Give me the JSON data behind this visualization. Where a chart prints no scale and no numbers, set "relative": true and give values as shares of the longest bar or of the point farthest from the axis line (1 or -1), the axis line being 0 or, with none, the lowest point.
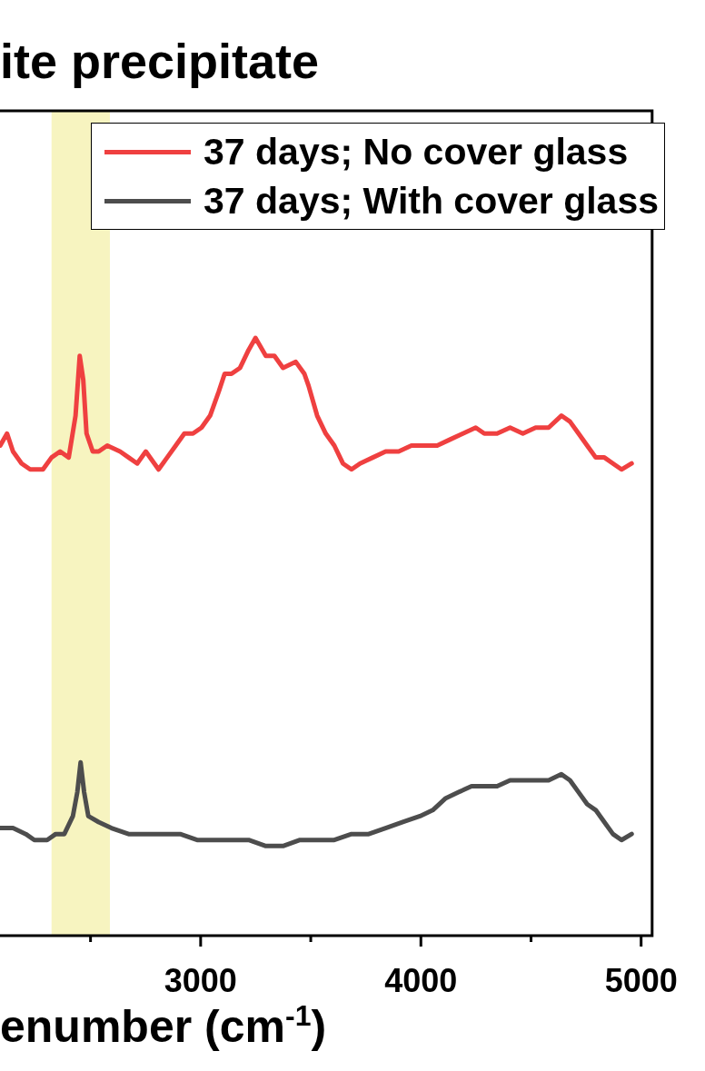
{
  "chart_data": {
    "type": "line",
    "title": "ite precipitate",
    "xlabel": "enumber (cm$^{-1}$)",
    "relative": true,
    "xlim": [
      2089,
      5050
    ],
    "xticks": [
      {
        "value": 2500,
        "label": null
      },
      3000,
      {
        "value": 3500,
        "label": null
      },
      4000,
      {
        "value": 4500,
        "label": null
      },
      5000
    ],
    "legend": "top right",
    "marker": "none",
    "line_style": "solid",
    "bands": [
      {
        "axis": "x",
        "from": 2323,
        "to": 2588,
        "color": "#f7f4c0"
      }
    ],
    "series": [
      {
        "name": "37 days; No cover glass",
        "color": "#ef4040",
        "x": [
          2090,
          2121,
          2148,
          2187,
          2226,
          2284,
          2323,
          2362,
          2401,
          2432,
          2451,
          2467,
          2482,
          2510,
          2537,
          2576,
          2634,
          2673,
          2712,
          2751,
          2809,
          2848,
          2887,
          2926,
          2965,
          3004,
          3043,
          3082,
          3109,
          3140,
          3179,
          3218,
          3249,
          3296,
          3335,
          3374,
          3432,
          3471,
          3490,
          3529,
          3568,
          3607,
          3646,
          3685,
          3724,
          3782,
          3840,
          3899,
          3957,
          4016,
          4074,
          4132,
          4191,
          4249,
          4288,
          4346,
          4405,
          4463,
          4521,
          4580,
          4638,
          4677,
          4716,
          4755,
          4794,
          4833,
          4872,
          4911,
          4957
        ],
        "values": [
          0.82,
          0.84,
          0.81,
          0.79,
          0.78,
          0.78,
          0.8,
          0.81,
          0.8,
          0.87,
          0.97,
          0.93,
          0.84,
          0.81,
          0.81,
          0.82,
          0.81,
          0.8,
          0.79,
          0.81,
          0.78,
          0.8,
          0.82,
          0.84,
          0.84,
          0.85,
          0.87,
          0.91,
          0.94,
          0.94,
          0.95,
          0.98,
          1,
          0.97,
          0.97,
          0.95,
          0.96,
          0.94,
          0.92,
          0.87,
          0.84,
          0.82,
          0.79,
          0.78,
          0.79,
          0.8,
          0.81,
          0.81,
          0.82,
          0.82,
          0.82,
          0.83,
          0.84,
          0.85,
          0.84,
          0.84,
          0.85,
          0.84,
          0.85,
          0.85,
          0.87,
          0.86,
          0.84,
          0.82,
          0.8,
          0.8,
          0.79,
          0.78,
          0.79
        ]
      },
      {
        "name": "37 days; With cover glass",
        "color": "#4d4d4d",
        "x": [
          2090,
          2148,
          2206,
          2245,
          2303,
          2342,
          2381,
          2420,
          2440,
          2455,
          2471,
          2490,
          2537,
          2595,
          2673,
          2751,
          2829,
          2907,
          2984,
          3062,
          3140,
          3218,
          3296,
          3374,
          3451,
          3529,
          3607,
          3685,
          3763,
          3840,
          3918,
          3996,
          4054,
          4113,
          4171,
          4230,
          4288,
          4346,
          4405,
          4463,
          4521,
          4580,
          4638,
          4677,
          4716,
          4755,
          4794,
          4833,
          4872,
          4911,
          4957
        ],
        "values": [
          0.18,
          0.18,
          0.17,
          0.16,
          0.16,
          0.17,
          0.17,
          0.2,
          0.24,
          0.29,
          0.24,
          0.2,
          0.19,
          0.18,
          0.17,
          0.17,
          0.17,
          0.17,
          0.16,
          0.16,
          0.16,
          0.16,
          0.15,
          0.15,
          0.16,
          0.16,
          0.16,
          0.17,
          0.17,
          0.18,
          0.19,
          0.2,
          0.21,
          0.23,
          0.24,
          0.25,
          0.25,
          0.25,
          0.26,
          0.26,
          0.26,
          0.26,
          0.27,
          0.26,
          0.24,
          0.22,
          0.21,
          0.19,
          0.17,
          0.16,
          0.17
        ]
      }
    ]
  }
}
